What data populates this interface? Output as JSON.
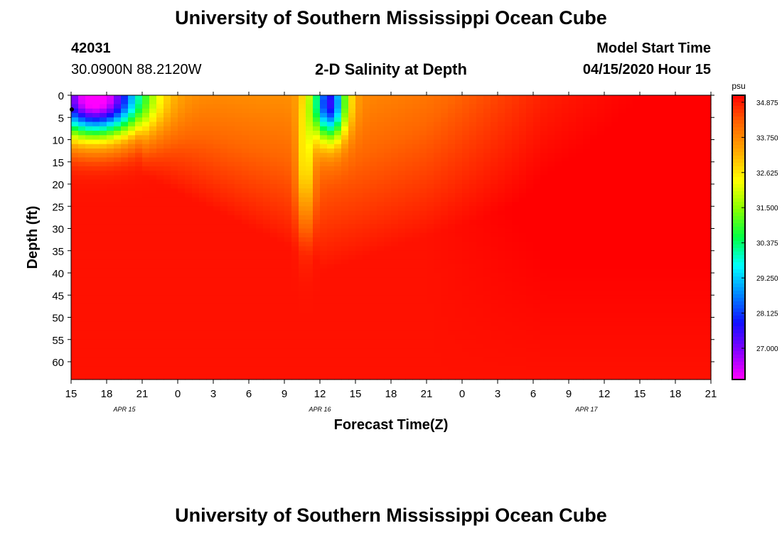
{
  "page": {
    "title_top": "University of Southern Mississippi Ocean Cube",
    "title_bottom": "University of Southern Mississippi Ocean Cube",
    "station_id": "42031",
    "station_coords": "30.0900N 88.2120W",
    "plot_title": "2-D Salinity at Depth",
    "model_start_label": "Model Start Time",
    "model_start_value": "04/15/2020 Hour 15"
  },
  "colors": {
    "background": "#ffffff",
    "colormap": [
      "#ff00ff",
      "#8800ff",
      "#1010ff",
      "#0088ff",
      "#00ffff",
      "#00ff44",
      "#88ff00",
      "#ffff00",
      "#ffaa00",
      "#ff6600",
      "#ff0000"
    ]
  },
  "chart_data": {
    "type": "heatmap",
    "title": "2-D Salinity at Depth",
    "xlabel": "Forecast Time(Z)",
    "ylabel": "Depth (ft)",
    "x_ticks": [
      "15",
      "18",
      "21",
      "0",
      "3",
      "6",
      "9",
      "12",
      "15",
      "18",
      "21",
      "0",
      "3",
      "6",
      "9",
      "12",
      "15",
      "18",
      "21"
    ],
    "x_range_hours": [
      0,
      54
    ],
    "date_labels": [
      {
        "label": "APR 15",
        "hour": 4.5
      },
      {
        "label": "APR 16",
        "hour": 21
      },
      {
        "label": "APR 17",
        "hour": 43.5
      }
    ],
    "y_ticks": [
      0,
      5,
      10,
      15,
      20,
      25,
      30,
      35,
      40,
      45,
      50,
      55,
      60
    ],
    "ylim": [
      0,
      64
    ],
    "y_inverted": true,
    "colorbar": {
      "unit": "psu",
      "tick_labels": [
        "34.875",
        "33.750",
        "32.625",
        "31.500",
        "30.375",
        "29.250",
        "28.125",
        "27.000"
      ],
      "range": [
        26.0,
        35.1
      ]
    },
    "features": [
      {
        "kind": "fresh-surface-lens",
        "hour_center": 3.5,
        "depth_center": 2,
        "min_salinity": 26.3
      },
      {
        "kind": "fresh-surface-lens",
        "hour_center": 21.6,
        "depth_center": 3,
        "min_salinity": 28.5
      },
      {
        "kind": "background",
        "salinity": 34.9
      }
    ]
  }
}
